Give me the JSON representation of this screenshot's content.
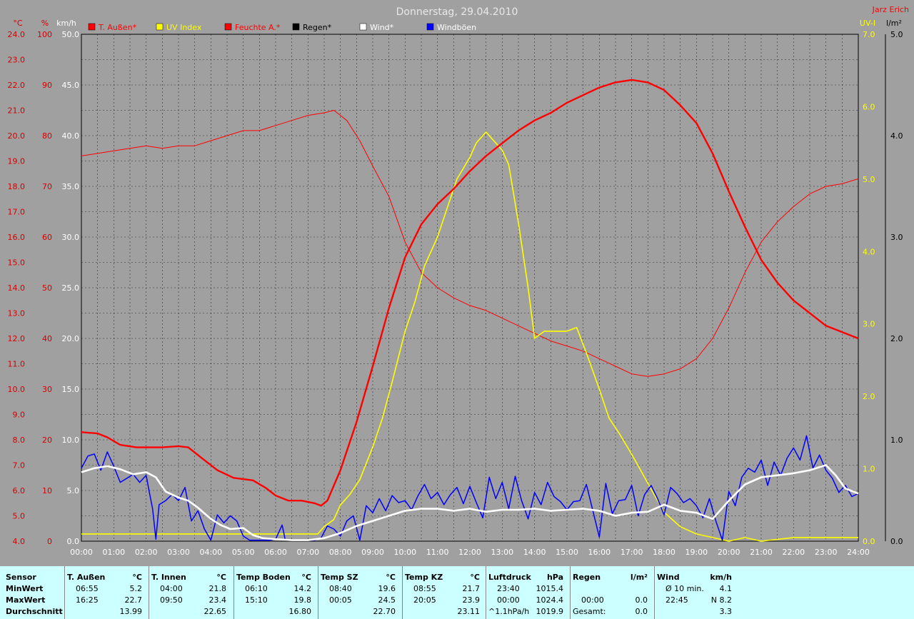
{
  "title": "Donnerstag, 29.04.2010",
  "author": "Jarz Erich",
  "legend": [
    {
      "label": "T. Außen*",
      "color": "#ff0000",
      "text_color": "#ff0000"
    },
    {
      "label": "UV Index",
      "color": "#ffff00",
      "text_color": "#ffff00"
    },
    {
      "label": "Feuchte A.*",
      "color": "#ff0000",
      "text_color": "#ff0000"
    },
    {
      "label": "Regen*",
      "color": "#000000",
      "text_color": "#000000"
    },
    {
      "label": "Wind*",
      "color": "#ffffff",
      "text_color": "#ffffff"
    },
    {
      "label": "Windböen",
      "color": "#0000ff",
      "text_color": "#ffffff"
    }
  ],
  "axes": {
    "temp_unit": "°C",
    "hum_unit": "%",
    "wind_unit": "km/h",
    "uv_unit": "UV-I",
    "rain_unit": "l/m²",
    "temp_ticks": [
      "24.0",
      "23.0",
      "22.0",
      "21.0",
      "20.0",
      "19.0",
      "18.0",
      "17.0",
      "16.0",
      "15.0",
      "14.0",
      "13.0",
      "12.0",
      "11.0",
      "10.0",
      "9.0",
      "8.0",
      "7.0",
      "6.0",
      "5.0",
      "4.0"
    ],
    "hum_ticks": [
      "100",
      "90",
      "80",
      "70",
      "60",
      "50",
      "40",
      "30",
      "20",
      "10",
      "0"
    ],
    "wind_ticks": [
      "50.0",
      "45.0",
      "40.0",
      "35.0",
      "30.0",
      "25.0",
      "20.0",
      "15.0",
      "10.0",
      "5.0",
      "0.0"
    ],
    "uv_ticks": [
      "7.0",
      "6.0",
      "5.0",
      "4.0",
      "3.0",
      "2.0",
      "1.0",
      "0.0"
    ],
    "rain_ticks": [
      "5.0",
      "4.0",
      "3.0",
      "2.0",
      "1.0",
      "0.0"
    ],
    "time_ticks": [
      "00:00",
      "01:00",
      "02:00",
      "03:00",
      "04:00",
      "05:00",
      "06:00",
      "07:00",
      "08:00",
      "09:00",
      "10:00",
      "11:00",
      "12:00",
      "13:00",
      "14:00",
      "15:00",
      "16:00",
      "17:00",
      "18:00",
      "19:00",
      "20:00",
      "21:00",
      "22:00",
      "23:00",
      "24:00"
    ]
  },
  "chart_data": {
    "type": "line",
    "title": "Donnerstag, 29.04.2010",
    "x_unit": "hours",
    "xlim": [
      0,
      24
    ],
    "temp_ylim": [
      4,
      24
    ],
    "hum_ylim": [
      0,
      100
    ],
    "wind_ylim": [
      0,
      50
    ],
    "uv_ylim": [
      0,
      7
    ],
    "rain_ylim": [
      0,
      5
    ],
    "grid": true,
    "legend_position": "top",
    "series": [
      {
        "name": "T. Außen*",
        "axis": "temp",
        "color": "#ff0000",
        "width": 2.4,
        "x": [
          0,
          0.5,
          0.8,
          1.2,
          1.7,
          2.5,
          3,
          3.3,
          3.7,
          4.2,
          4.7,
          5.3,
          5.7,
          6,
          6.4,
          6.8,
          7.2,
          7.4,
          7.6,
          8,
          8.5,
          9,
          9.5,
          10,
          10.5,
          11,
          11.5,
          12,
          12.5,
          13,
          13.5,
          14,
          14.5,
          15,
          15.5,
          16,
          16.5,
          17,
          17.5,
          18,
          18.5,
          19,
          19.5,
          20,
          20.5,
          21,
          21.5,
          22,
          22.5,
          23,
          23.5,
          24
        ],
        "y": [
          8.3,
          8.25,
          8.1,
          7.8,
          7.7,
          7.7,
          7.75,
          7.7,
          7.3,
          6.8,
          6.5,
          6.4,
          6.1,
          5.8,
          5.6,
          5.6,
          5.5,
          5.4,
          5.6,
          6.8,
          8.7,
          10.9,
          13.2,
          15.2,
          16.5,
          17.3,
          17.9,
          18.6,
          19.2,
          19.7,
          20.2,
          20.6,
          20.9,
          21.3,
          21.6,
          21.9,
          22.1,
          22.2,
          22.1,
          21.8,
          21.2,
          20.5,
          19.3,
          17.8,
          16.4,
          15.1,
          14.2,
          13.5,
          13.0,
          12.5,
          12.25,
          12.0
        ]
      },
      {
        "name": "Feuchte A.*",
        "axis": "hum",
        "color": "#ff0000",
        "width": 1,
        "x": [
          0,
          0.5,
          1,
          1.5,
          2,
          2.5,
          3,
          3.5,
          4,
          4.5,
          5,
          5.5,
          6,
          6.5,
          7,
          7.5,
          7.8,
          8.2,
          8.6,
          9,
          9.5,
          10,
          10.5,
          11,
          11.5,
          12,
          12.5,
          13,
          13.5,
          14,
          14.5,
          15,
          15.5,
          16,
          16.5,
          17,
          17.5,
          18,
          18.5,
          19,
          19.5,
          20,
          20.5,
          21,
          21.5,
          22,
          22.5,
          23,
          23.5,
          24
        ],
        "y": [
          76,
          76.5,
          77,
          77.5,
          78,
          77.5,
          78,
          78,
          79,
          80,
          81,
          81,
          82,
          83,
          84,
          84.5,
          85,
          83,
          79,
          74,
          68,
          59,
          53,
          50,
          48,
          46.5,
          45.5,
          44,
          42.5,
          41,
          39.5,
          38.5,
          37.5,
          36,
          34.5,
          33,
          32.5,
          33,
          34,
          36,
          40,
          46,
          53,
          59,
          63,
          66,
          68.5,
          70,
          70.5,
          71.5
        ]
      },
      {
        "name": "UV Index",
        "axis": "uv",
        "color": "#ffff00",
        "width": 1.6,
        "x": [
          0,
          7.3,
          7.5,
          7.8,
          8,
          8.3,
          8.6,
          9,
          9.3,
          9.6,
          10,
          10.3,
          10.6,
          11,
          11.3,
          11.6,
          12,
          12.2,
          12.5,
          12.7,
          13,
          13.2,
          13.5,
          13.8,
          14,
          14.3,
          15,
          15.3,
          15.6,
          16,
          16.3,
          16.6,
          17,
          17.5,
          18,
          18.5,
          19,
          19.5,
          20,
          20.5,
          21,
          22,
          23,
          24
        ],
        "y": [
          0.1,
          0.1,
          0.2,
          0.3,
          0.5,
          0.65,
          0.85,
          1.3,
          1.7,
          2.2,
          2.9,
          3.3,
          3.8,
          4.2,
          4.6,
          5.0,
          5.3,
          5.5,
          5.65,
          5.55,
          5.4,
          5.2,
          4.4,
          3.5,
          2.8,
          2.9,
          2.9,
          2.95,
          2.6,
          2.1,
          1.7,
          1.5,
          1.2,
          0.8,
          0.4,
          0.2,
          0.1,
          0.05,
          0.0,
          0.05,
          0.0,
          0.05,
          0.05,
          0.05
        ]
      },
      {
        "name": "Wind*",
        "axis": "wind",
        "color": "#ffffff",
        "width": 2.6,
        "x": [
          0,
          0.4,
          0.8,
          1.2,
          1.6,
          2,
          2.3,
          2.6,
          3,
          3.3,
          3.6,
          4,
          4.3,
          4.6,
          5,
          5.3,
          5.6,
          6,
          6.5,
          7,
          7.5,
          8,
          8.5,
          9,
          9.5,
          10,
          10.5,
          11,
          11.5,
          12,
          12.5,
          13,
          13.5,
          14,
          14.5,
          15,
          15.5,
          16,
          16.5,
          17,
          17.5,
          18,
          18.5,
          19,
          19.5,
          20,
          20.5,
          21,
          21.5,
          22,
          22.5,
          23,
          23.3,
          23.6,
          24
        ],
        "y": [
          6.8,
          7.2,
          7.4,
          7.1,
          6.6,
          6.8,
          6.3,
          4.9,
          4.3,
          4.0,
          3.3,
          2.2,
          1.6,
          1.2,
          1.3,
          0.6,
          0.3,
          0.2,
          0.1,
          0.1,
          0.3,
          0.8,
          1.5,
          2.0,
          2.5,
          3.0,
          3.2,
          3.2,
          3.0,
          3.2,
          2.9,
          3.1,
          3.1,
          3.2,
          3.0,
          3.1,
          3.2,
          3.0,
          2.5,
          2.8,
          2.9,
          3.6,
          3.0,
          2.8,
          2.2,
          4.0,
          5.6,
          6.3,
          6.5,
          6.7,
          7.0,
          7.5,
          6.5,
          5.2,
          4.7
        ]
      },
      {
        "name": "Windböen",
        "axis": "wind",
        "color": "#0000ff",
        "width": 1.5,
        "x": [
          0,
          0.2,
          0.4,
          0.6,
          0.8,
          1,
          1.2,
          1.4,
          1.6,
          1.8,
          2,
          2.1,
          2.2,
          2.3,
          2.4,
          2.6,
          2.8,
          3,
          3.2,
          3.4,
          3.6,
          3.8,
          4,
          4.2,
          4.4,
          4.6,
          4.8,
          5,
          5.2,
          5.4,
          5.6,
          5.8,
          6,
          6.2,
          6.3,
          6.4,
          6.6,
          6.8,
          7,
          7.2,
          7.4,
          7.6,
          7.8,
          8,
          8.2,
          8.4,
          8.6,
          8.8,
          9,
          9.2,
          9.4,
          9.6,
          9.8,
          10,
          10.2,
          10.4,
          10.6,
          10.8,
          11,
          11.2,
          11.4,
          11.6,
          11.8,
          12,
          12.2,
          12.4,
          12.6,
          12.8,
          13,
          13.2,
          13.4,
          13.6,
          13.8,
          14,
          14.2,
          14.4,
          14.6,
          14.8,
          15,
          15.2,
          15.4,
          15.6,
          15.8,
          16,
          16.2,
          16.4,
          16.6,
          16.8,
          17,
          17.2,
          17.4,
          17.6,
          17.8,
          18,
          18.2,
          18.4,
          18.6,
          18.8,
          19,
          19.2,
          19.4,
          19.6,
          19.8,
          20,
          20.2,
          20.4,
          20.6,
          20.8,
          21,
          21.2,
          21.4,
          21.6,
          21.8,
          22,
          22.2,
          22.4,
          22.6,
          22.8,
          23,
          23.2,
          23.4,
          23.6,
          23.8,
          24
        ],
        "y": [
          7.2,
          8.4,
          8.6,
          7.0,
          8.8,
          7.4,
          5.8,
          6.2,
          6.6,
          5.8,
          6.5,
          4.8,
          3.2,
          0.2,
          3.6,
          4.0,
          4.6,
          4.0,
          5.3,
          2.0,
          3.0,
          1.2,
          0.1,
          2.6,
          1.8,
          2.5,
          2.0,
          0.5,
          0.1,
          0.1,
          0.1,
          0.1,
          0.2,
          1.6,
          0.1,
          0.1,
          0.1,
          0.1,
          0.1,
          0.1,
          0.3,
          1.5,
          1.2,
          0.5,
          2.0,
          2.5,
          0.1,
          3.5,
          2.8,
          4.2,
          3.0,
          4.5,
          3.8,
          4.0,
          3.1,
          4.5,
          5.6,
          4.2,
          4.8,
          3.6,
          4.6,
          5.3,
          3.7,
          5.4,
          3.8,
          2.3,
          6.3,
          4.2,
          5.8,
          3.2,
          6.4,
          4.0,
          2.2,
          4.8,
          3.6,
          5.8,
          4.4,
          3.9,
          3.1,
          3.9,
          4.0,
          5.6,
          3.0,
          0.4,
          5.7,
          2.7,
          4.0,
          4.1,
          5.5,
          2.5,
          4.6,
          5.5,
          4.2,
          2.6,
          5.3,
          4.7,
          3.8,
          4.2,
          3.5,
          2.3,
          4.2,
          2.0,
          0.1,
          4.9,
          3.5,
          6.3,
          7.2,
          6.8,
          8.0,
          5.5,
          7.8,
          6.5,
          8.2,
          9.2,
          8.0,
          10.4,
          7.2,
          8.5,
          7.0,
          6.2,
          4.8,
          5.5,
          4.4,
          4.7
        ]
      },
      {
        "name": "Regen*",
        "axis": "rain",
        "color": "#000000",
        "width": 1,
        "x": [
          0,
          24
        ],
        "y": [
          0,
          0
        ]
      }
    ]
  },
  "stats": {
    "sensor": {
      "title": "Sensor",
      "min": "MinWert",
      "max": "MaxWert",
      "avg": "Durchschnitt"
    },
    "columns": [
      {
        "name": "T. Außen",
        "unit": "°C",
        "min_time": "06:55",
        "min_val": "5.2",
        "max_time": "16:25",
        "max_val": "22.7",
        "avg": "13.99"
      },
      {
        "name": "T. Innen",
        "unit": "°C",
        "min_time": "04:00",
        "min_val": "21.8",
        "max_time": "09:50",
        "max_val": "23.4",
        "avg": "22.65"
      },
      {
        "name": "Temp Boden",
        "unit": "°C",
        "min_time": "06:10",
        "min_val": "14.2",
        "max_time": "15:10",
        "max_val": "19.8",
        "avg": "16.80"
      },
      {
        "name": "Temp SZ",
        "unit": "°C",
        "min_time": "08:40",
        "min_val": "19.6",
        "max_time": "00:05",
        "max_val": "24.5",
        "avg": "22.70"
      },
      {
        "name": "Temp KZ",
        "unit": "°C",
        "min_time": "08:55",
        "min_val": "21.7",
        "max_time": "20:05",
        "max_val": "23.9",
        "avg": "23.11"
      },
      {
        "name": "Luftdruck",
        "unit": "hPa",
        "min_time": "23:40",
        "min_val": "1015.4",
        "max_time": "00:00",
        "max_val": "1024.4",
        "avg_label": "^1.1hPa/h",
        "avg": "1019.9"
      },
      {
        "name": "Regen",
        "unit": "l/m²",
        "min_time": "",
        "min_val": "",
        "max_time": "00:00",
        "max_val": "0.0",
        "avg_label": "Gesamt:",
        "avg": "0.0"
      },
      {
        "name": "Wind",
        "unit": "km/h",
        "min_time": "Ø 10 min.",
        "min_val": "4.1",
        "max_time": "22:45",
        "max_val": "N 8.2",
        "avg": "3.3"
      }
    ]
  }
}
